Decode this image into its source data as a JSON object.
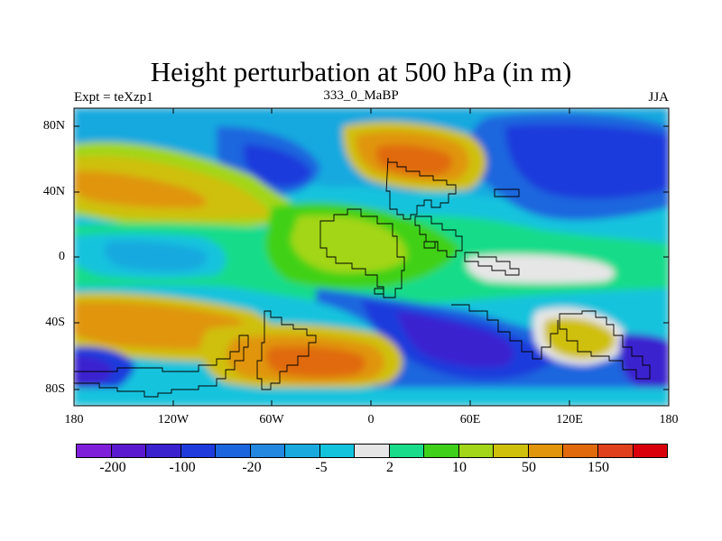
{
  "title": "Height perturbation at 500 hPa (in m)",
  "left_subtitle": "Expt = teXzp1",
  "center_subtitle": "333_0_MaBP",
  "right_subtitle": "JJA",
  "y_ticks": [
    "80N",
    "40N",
    "0",
    "40S",
    "80S"
  ],
  "x_ticks": [
    "180",
    "120W",
    "60W",
    "0",
    "60E",
    "120E",
    "180"
  ],
  "colorbar": {
    "colors": [
      "#7f1fd9",
      "#5b19cf",
      "#3b22cf",
      "#1f3bdc",
      "#1b66de",
      "#2488e0",
      "#19a9df",
      "#12c3dd",
      "#e6e6e6",
      "#19dc8a",
      "#3fd119",
      "#a3d619",
      "#cfc00c",
      "#e0950c",
      "#e06a0c",
      "#e0401c",
      "#d9000c"
    ],
    "labels": [
      "-200",
      "-100",
      "-20",
      "-5",
      "2",
      "10",
      "50",
      "150"
    ]
  },
  "map": {
    "lon_range": [
      -180,
      180
    ],
    "lat_range": [
      -90,
      90
    ]
  }
}
